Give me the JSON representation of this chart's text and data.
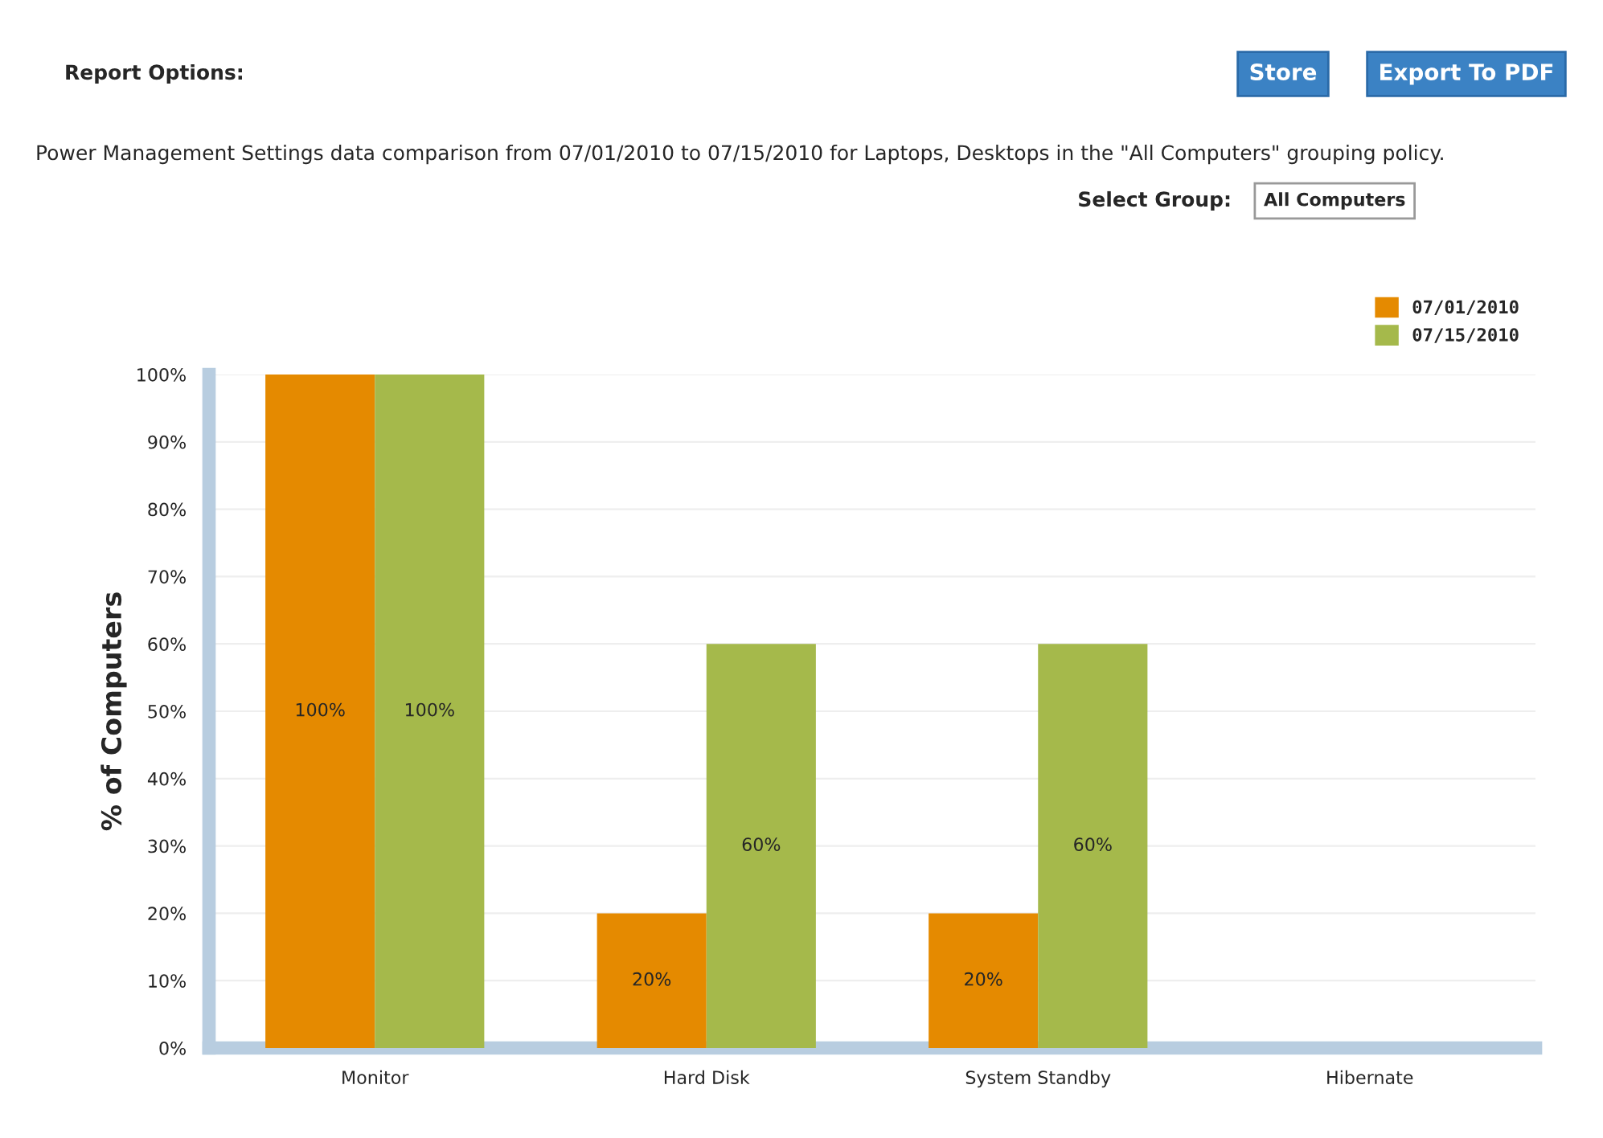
{
  "chart_data": {
    "type": "bar",
    "ylabel": "% of Computers",
    "categories": [
      "Monitor",
      "Hard Disk",
      "System Standby",
      "Hibernate"
    ],
    "series": [
      {
        "name": "07/01/2010",
        "color": "#e58a00",
        "values": [
          100,
          20,
          20,
          0
        ],
        "value_labels": [
          "100%",
          "20%",
          "20%",
          null
        ]
      },
      {
        "name": "07/15/2010",
        "color": "#a5b94b",
        "values": [
          100,
          60,
          60,
          0
        ],
        "value_labels": [
          "100%",
          "60%",
          "60%",
          null
        ]
      }
    ],
    "ylim": [
      0,
      100
    ],
    "yticks": [
      {
        "value": 0,
        "label": "0%"
      },
      {
        "value": 10,
        "label": "10%"
      },
      {
        "value": 20,
        "label": "20%"
      },
      {
        "value": 30,
        "label": "30%"
      },
      {
        "value": 40,
        "label": "40%"
      },
      {
        "value": 50,
        "label": "50%"
      },
      {
        "value": 60,
        "label": "60%"
      },
      {
        "value": 70,
        "label": "70%"
      },
      {
        "value": 80,
        "label": "80%"
      },
      {
        "value": 90,
        "label": "90%"
      },
      {
        "value": 100,
        "label": "100%"
      }
    ],
    "grid": "y",
    "legend": "top right",
    "annotations": [
      "Report Options:",
      "Store",
      "Export To PDF",
      "Power Management Settings data comparison from 07/01/2010 to 07/15/2010 for Laptops, Desktops in the \"All Computers\" grouping policy.",
      "Select Group:",
      "All Computers"
    ]
  }
}
